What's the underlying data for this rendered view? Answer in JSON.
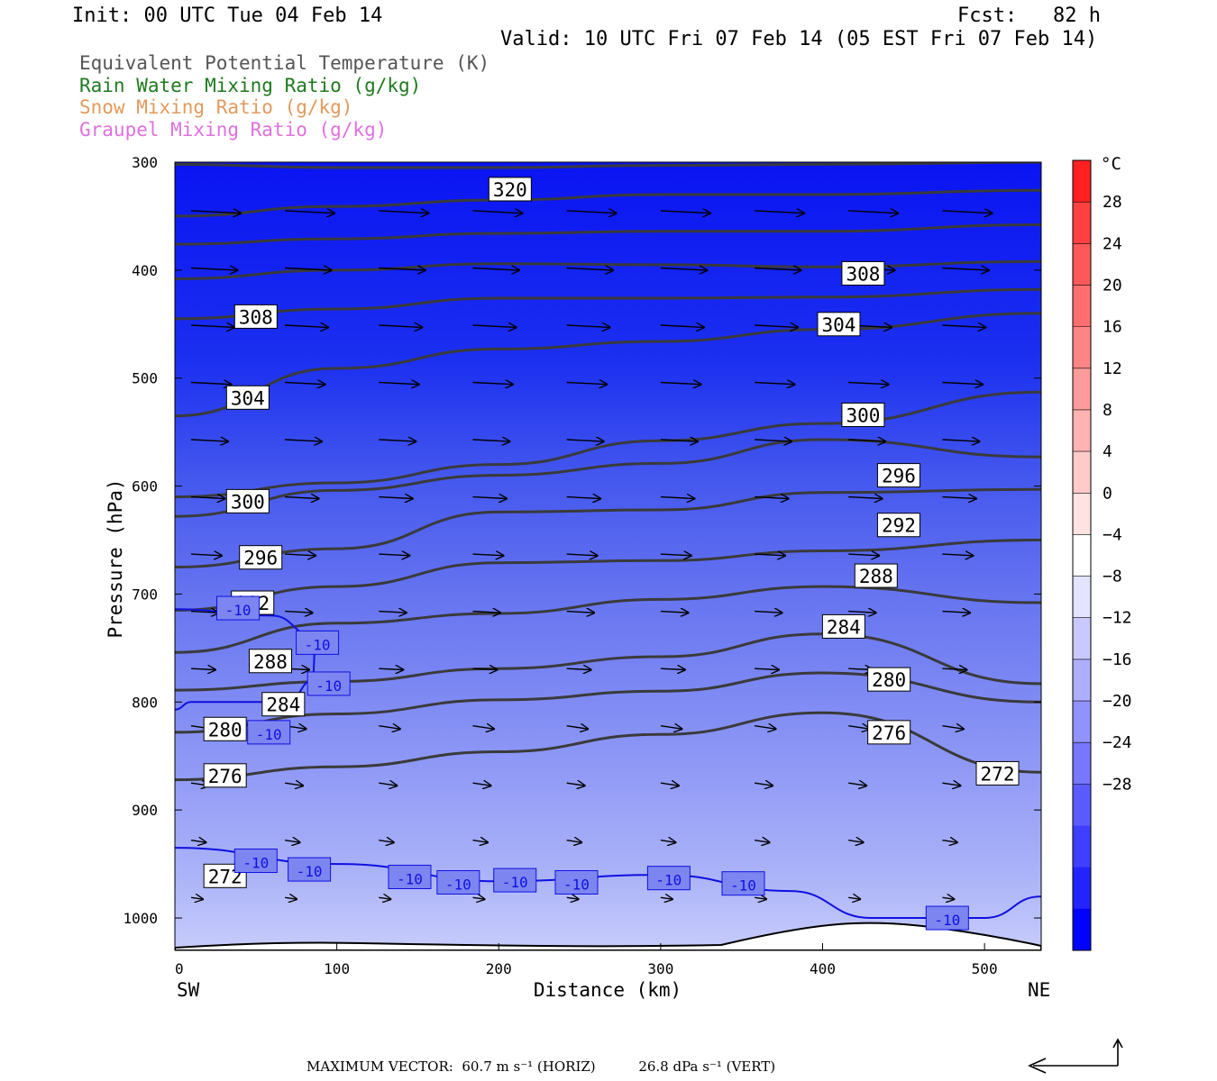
{
  "header": {
    "init": "Init: 00 UTC Tue 04 Feb 14",
    "fcst": "Fcst:   82 h",
    "valid": "Valid: 10 UTC Fri 07 Feb 14 (05 EST Fri 07 Feb 14)"
  },
  "fields": [
    {
      "label": "Equivalent Potential Temperature (K)",
      "color": "#555555"
    },
    {
      "label": "Rain Water Mixing Ratio (g/kg)",
      "color": "#1e7a1e"
    },
    {
      "label": "Snow Mixing Ratio (g/kg)",
      "color": "#e39a5b"
    },
    {
      "label": "Graupel Mixing Ratio (g/kg)",
      "color": "#e070e0"
    }
  ],
  "chart_data": {
    "type": "heatmap",
    "xlabel": "Distance (km)",
    "ylabel": "Pressure (hPa)",
    "x_left_label": "SW",
    "x_right_label": "NE",
    "xlim": [
      0,
      535
    ],
    "ylim": [
      1030,
      300
    ],
    "xticks": [
      0,
      100,
      200,
      300,
      400,
      500
    ],
    "yticks": [
      300,
      400,
      500,
      600,
      700,
      800,
      900,
      1000
    ],
    "colorbar": {
      "unit": "°C",
      "levels": [
        28,
        24,
        20,
        16,
        12,
        8,
        4,
        0,
        -4,
        -8,
        -12,
        -16,
        -20,
        -24,
        -28
      ],
      "colors": [
        "#ff2020",
        "#ff4040",
        "#ff5858",
        "#ff6e6e",
        "#ff8585",
        "#ff9b9b",
        "#ffb3b3",
        "#ffcaca",
        "#ffe2e2",
        "#ffffff",
        "#e4e4ff",
        "#c9c9ff",
        "#aeaeff",
        "#9292ff",
        "#7777ff",
        "#5b5bff",
        "#3f3fff",
        "#2323ff",
        "#0000ff"
      ]
    },
    "theta_e_contours": [
      {
        "label": "320",
        "points": [
          [
            0,
            302
          ],
          [
            100,
            305
          ],
          [
            200,
            305
          ],
          [
            300,
            303
          ],
          [
            400,
            302
          ],
          [
            535,
            300
          ]
        ]
      },
      {
        "label": "",
        "points": [
          [
            0,
            350
          ],
          [
            100,
            341
          ],
          [
            200,
            335
          ],
          [
            300,
            330
          ],
          [
            400,
            330
          ],
          [
            535,
            326
          ]
        ]
      },
      {
        "label": "",
        "points": [
          [
            0,
            376
          ],
          [
            100,
            371
          ],
          [
            200,
            366
          ],
          [
            300,
            364
          ],
          [
            400,
            364
          ],
          [
            535,
            358
          ]
        ]
      },
      {
        "label": "308",
        "points": [
          [
            0,
            408
          ],
          [
            100,
            400
          ],
          [
            200,
            394
          ],
          [
            300,
            395
          ],
          [
            400,
            397
          ],
          [
            535,
            392
          ]
        ]
      },
      {
        "label": "",
        "points": [
          [
            0,
            445
          ],
          [
            100,
            436
          ],
          [
            200,
            426
          ],
          [
            300,
            426
          ],
          [
            400,
            425
          ],
          [
            535,
            418
          ]
        ]
      },
      {
        "label": "304",
        "points": [
          [
            0,
            535
          ],
          [
            100,
            491
          ],
          [
            200,
            473
          ],
          [
            300,
            466
          ],
          [
            400,
            455
          ],
          [
            535,
            440
          ]
        ]
      },
      {
        "label": "300",
        "points": [
          [
            0,
            610
          ],
          [
            100,
            597
          ],
          [
            200,
            580
          ],
          [
            300,
            558
          ],
          [
            400,
            542
          ],
          [
            535,
            513
          ]
        ]
      },
      {
        "label": "296",
        "points": [
          [
            0,
            628
          ],
          [
            100,
            604
          ],
          [
            200,
            590
          ],
          [
            300,
            579
          ],
          [
            400,
            557
          ],
          [
            535,
            573
          ]
        ]
      },
      {
        "label": "292",
        "points": [
          [
            0,
            675
          ],
          [
            100,
            658
          ],
          [
            200,
            624
          ],
          [
            300,
            622
          ],
          [
            400,
            606
          ],
          [
            535,
            603
          ]
        ]
      },
      {
        "label": "288",
        "points": [
          [
            0,
            715
          ],
          [
            100,
            693
          ],
          [
            200,
            671
          ],
          [
            300,
            669
          ],
          [
            400,
            660
          ],
          [
            535,
            650
          ]
        ]
      },
      {
        "label": "284",
        "points": [
          [
            0,
            754
          ],
          [
            100,
            727
          ],
          [
            200,
            718
          ],
          [
            300,
            705
          ],
          [
            400,
            693
          ],
          [
            535,
            708
          ]
        ]
      },
      {
        "label": "280",
        "points": [
          [
            0,
            789
          ],
          [
            100,
            781
          ],
          [
            200,
            769
          ],
          [
            300,
            758
          ],
          [
            400,
            737
          ],
          [
            535,
            783
          ]
        ]
      },
      {
        "label": "276",
        "points": [
          [
            0,
            828
          ],
          [
            100,
            811
          ],
          [
            200,
            798
          ],
          [
            300,
            790
          ],
          [
            400,
            773
          ],
          [
            535,
            800
          ]
        ]
      },
      {
        "label": "272",
        "points": [
          [
            0,
            872
          ],
          [
            100,
            860
          ],
          [
            200,
            846
          ],
          [
            300,
            830
          ],
          [
            400,
            810
          ],
          [
            535,
            865
          ]
        ]
      }
    ],
    "temperature_contours": [
      {
        "label": "-10",
        "points": [
          [
            0,
            714
          ],
          [
            60,
            720
          ],
          [
            87,
            740
          ],
          [
            85,
            780
          ],
          [
            70,
            800
          ],
          [
            10,
            800
          ],
          [
            0,
            807
          ]
        ]
      },
      {
        "label": "-10",
        "points": [
          [
            0,
            935
          ],
          [
            100,
            950
          ],
          [
            200,
            966
          ],
          [
            300,
            960
          ],
          [
            380,
            975
          ],
          [
            430,
            1000
          ],
          [
            500,
            1000
          ],
          [
            535,
            980
          ]
        ]
      }
    ],
    "max_vector": {
      "text": "MAXIMUM VECTOR:  60.7 m s⁻¹ (HORIZ)          26.8 dPa s⁻¹ (VERT)"
    }
  }
}
